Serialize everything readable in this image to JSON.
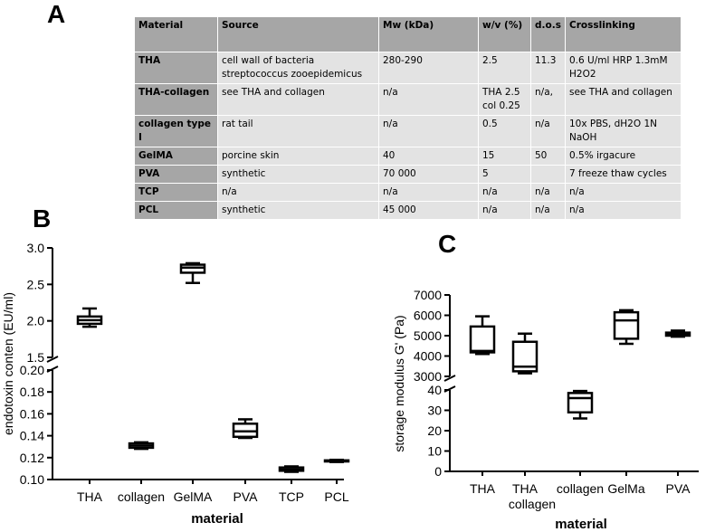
{
  "panels": {
    "a": "A",
    "b": "B",
    "c": "C"
  },
  "table": {
    "headers": [
      "Material",
      "Source",
      "Mw (kDa)",
      "w/v (%)",
      "d.o.s",
      "Crosslinking"
    ],
    "rows": [
      [
        "THA",
        "cell wall of bacteria streptococcus zooepidemicus",
        "280-290",
        "2.5",
        "11.3",
        "0.6 U/ml HRP 1.3mM H2O2"
      ],
      [
        "THA-collagen",
        "see THA and collagen",
        "n/a",
        "THA 2.5 col 0.25",
        "n/a,",
        "see THA and collagen"
      ],
      [
        "collagen type I",
        "rat tail",
        "n/a",
        "0.5",
        "n/a",
        "10x PBS, dH2O 1N NaOH"
      ],
      [
        "GelMA",
        "porcine skin",
        "40",
        "15",
        "50",
        "0.5% irgacure"
      ],
      [
        "PVA",
        "synthetic",
        "70 000",
        "5",
        "",
        "7 freeze thaw cycles"
      ],
      [
        "TCP",
        "n/a",
        "n/a",
        "n/a",
        "n/a",
        "n/a"
      ],
      [
        "PCL",
        "synthetic",
        "45 000",
        "n/a",
        "n/a",
        "n/a"
      ]
    ]
  },
  "chart_data": [
    {
      "type": "box",
      "panel": "B",
      "xlabel": "material",
      "ylabel": "endotoxin conten (EU/ml)",
      "categories": [
        "THA",
        "collagen",
        "GelMA",
        "PVA",
        "TCP",
        "PCL"
      ],
      "broken_axis": {
        "upper": {
          "ylim": [
            1.5,
            3.0
          ],
          "ticks": [
            "1.5",
            "2.0",
            "2.5",
            "3.0"
          ]
        },
        "lower": {
          "ylim": [
            0.1,
            0.2
          ],
          "ticks": [
            "0.10",
            "0.12",
            "0.14",
            "0.16",
            "0.18",
            "0.20"
          ]
        }
      },
      "boxes": [
        {
          "category": "THA",
          "segment": "upper",
          "min": 1.92,
          "q1": 1.96,
          "median": 2.01,
          "q3": 2.06,
          "max": 2.17
        },
        {
          "category": "collagen",
          "segment": "lower",
          "min": 0.128,
          "q1": 0.129,
          "median": 0.131,
          "q3": 0.133,
          "max": 0.134
        },
        {
          "category": "GelMA",
          "segment": "upper",
          "min": 2.52,
          "q1": 2.66,
          "median": 2.73,
          "q3": 2.77,
          "max": 2.79
        },
        {
          "category": "PVA",
          "segment": "lower",
          "min": 0.138,
          "q1": 0.139,
          "median": 0.144,
          "q3": 0.151,
          "max": 0.155
        },
        {
          "category": "TCP",
          "segment": "lower",
          "min": 0.107,
          "q1": 0.108,
          "median": 0.109,
          "q3": 0.111,
          "max": 0.112
        },
        {
          "category": "PCL",
          "segment": "lower",
          "min": 0.116,
          "q1": 0.1165,
          "median": 0.117,
          "q3": 0.1175,
          "max": 0.118
        }
      ]
    },
    {
      "type": "box",
      "panel": "C",
      "xlabel": "material",
      "ylabel": "storage modulus G' (Pa)",
      "categories": [
        "THA",
        "THA collagen",
        "collagen",
        "GelMa",
        "PVA"
      ],
      "category_lines": [
        [
          "THA"
        ],
        [
          "THA",
          "collagen"
        ],
        [
          "collagen"
        ],
        [
          "GelMa"
        ],
        [
          "PVA"
        ]
      ],
      "broken_axis": {
        "upper": {
          "ylim": [
            3000,
            7000
          ],
          "ticks": [
            "3000",
            "4000",
            "5000",
            "6000",
            "7000"
          ]
        },
        "lower": {
          "ylim": [
            0,
            40
          ],
          "ticks": [
            "0",
            "10",
            "20",
            "30",
            "40"
          ]
        }
      },
      "boxes": [
        {
          "category": "THA",
          "segment": "upper",
          "min": 4100,
          "q1": 4180,
          "median": 4250,
          "q3": 5450,
          "max": 5950
        },
        {
          "category": "THA collagen",
          "segment": "upper",
          "min": 3150,
          "q1": 3250,
          "median": 3480,
          "q3": 4700,
          "max": 5100
        },
        {
          "category": "collagen",
          "segment": "lower",
          "min": 26,
          "q1": 29,
          "median": 36,
          "q3": 38.5,
          "max": 39.5
        },
        {
          "category": "GelMa",
          "segment": "upper",
          "min": 4600,
          "q1": 4850,
          "median": 5750,
          "q3": 6150,
          "max": 6250
        },
        {
          "category": "PVA",
          "segment": "upper",
          "min": 4950,
          "q1": 5000,
          "median": 5100,
          "q3": 5150,
          "max": 5250
        }
      ]
    }
  ]
}
